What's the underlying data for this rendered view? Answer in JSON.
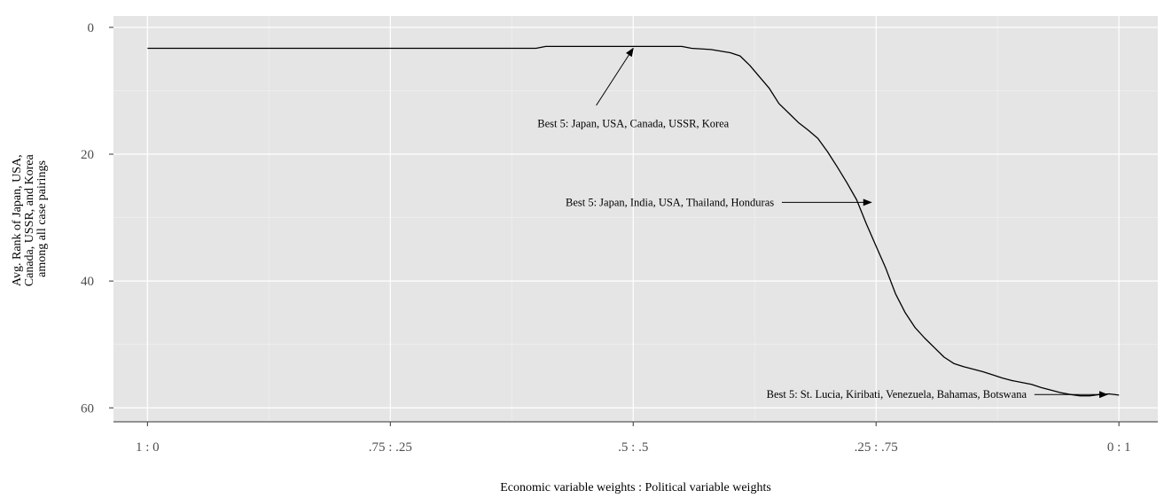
{
  "chart_data": {
    "type": "line",
    "title": "",
    "xlabel": "Economic variable weights : Political variable weights",
    "ylabel": [
      "Avg. Rank of Japan, USA,",
      "Canada, USSR, and Korea",
      "among all case pairings"
    ],
    "x_tick_labels": [
      "1 : 0",
      ".75 : .25",
      ".5 : .5",
      ".25 : .75",
      "0 : 1"
    ],
    "x_tick_values": [
      0,
      0.25,
      0.5,
      0.75,
      1
    ],
    "y_tick_labels": [
      "0",
      "20",
      "40",
      "60"
    ],
    "y_tick_values": [
      0,
      20,
      40,
      60
    ],
    "xlim": [
      -0.035,
      1.04
    ],
    "ylim": [
      -1.8,
      62.2
    ],
    "y_reversed": true,
    "grid": true,
    "series": [
      {
        "x": [
          0,
          0.1,
          0.2,
          0.3,
          0.4,
          0.41,
          0.45,
          0.5,
          0.55,
          0.56,
          0.58,
          0.6,
          0.61,
          0.62,
          0.63,
          0.64,
          0.65,
          0.66,
          0.67,
          0.68,
          0.69,
          0.7,
          0.71,
          0.72,
          0.73,
          0.74,
          0.75,
          0.76,
          0.77,
          0.78,
          0.79,
          0.8,
          0.81,
          0.82,
          0.83,
          0.84,
          0.85,
          0.86,
          0.87,
          0.88,
          0.89,
          0.9,
          0.91,
          0.92,
          0.93,
          0.94,
          0.95,
          0.96,
          0.97,
          0.98,
          0.99,
          1.0
        ],
        "y": [
          3.3,
          3.3,
          3.3,
          3.3,
          3.3,
          3.0,
          3.0,
          3.0,
          3.0,
          3.3,
          3.5,
          4.0,
          4.5,
          6.0,
          7.8,
          9.6,
          12.0,
          13.5,
          15.0,
          16.2,
          17.5,
          19.6,
          22.0,
          24.5,
          27.2,
          31.0,
          34.5,
          38.0,
          42.0,
          45.0,
          47.3,
          49.0,
          50.5,
          52.0,
          53.0,
          53.5,
          53.9,
          54.3,
          54.8,
          55.3,
          55.7,
          56.0,
          56.3,
          56.8,
          57.2,
          57.6,
          57.9,
          58.1,
          58.1,
          57.9,
          57.8,
          58.0
        ]
      }
    ],
    "annotations": [
      {
        "text": "Best 5: Japan, USA, Canada, USSR, Korea",
        "text_x": 0.5,
        "text_y": 15.2,
        "anchor": "middle",
        "arrow_from": [
          0.462,
          12.3
        ],
        "arrow_to": [
          0.5,
          3.3
        ]
      },
      {
        "text": "Best 5: Japan, India, USA, Thailand, Honduras",
        "text_x": 0.645,
        "text_y": 27.6,
        "anchor": "end",
        "arrow_from": [
          0.653,
          27.6
        ],
        "arrow_to": [
          0.745,
          27.6
        ]
      },
      {
        "text": "Best 5: St. Lucia, Kiribati, Venezuela, Bahamas, Botswana",
        "text_x": 0.905,
        "text_y": 57.9,
        "anchor": "end",
        "arrow_from": [
          0.913,
          57.9
        ],
        "arrow_to": [
          0.988,
          57.9
        ]
      }
    ]
  }
}
